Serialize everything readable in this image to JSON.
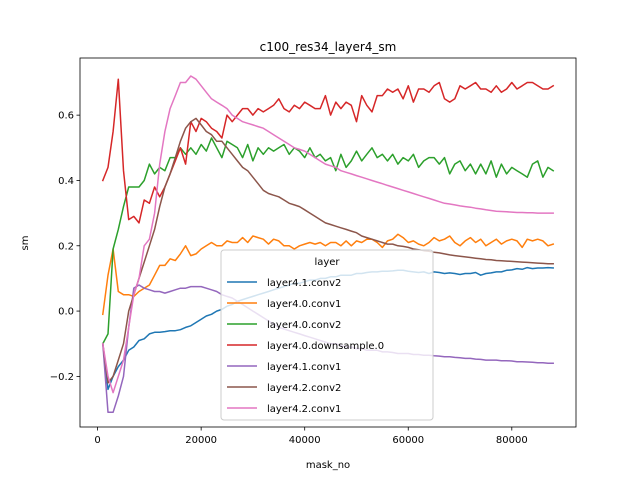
{
  "chart_data": {
    "type": "line",
    "title": "c100_res34_layer4_sm",
    "xlabel": "mask_no",
    "ylabel": "sm",
    "xlim": [
      -3400,
      92400
    ],
    "ylim": [
      -0.355,
      0.775
    ],
    "xticks": [
      0,
      20000,
      40000,
      60000,
      80000
    ],
    "yticks": [
      -0.2,
      0.0,
      0.2,
      0.4,
      0.6
    ],
    "grid": false,
    "legend": {
      "title": "layer",
      "placement": "lower-center"
    },
    "x": [
      1000,
      2000,
      3000,
      4000,
      5000,
      6000,
      7000,
      8000,
      9000,
      10000,
      11000,
      12000,
      13000,
      14000,
      15000,
      16000,
      17000,
      18000,
      19000,
      20000,
      21000,
      22000,
      23000,
      24000,
      25000,
      26000,
      27000,
      28000,
      29000,
      30000,
      31000,
      32000,
      33000,
      34000,
      35000,
      36000,
      37000,
      38000,
      39000,
      40000,
      41000,
      42000,
      43000,
      44000,
      45000,
      46000,
      47000,
      48000,
      49000,
      50000,
      51000,
      52000,
      53000,
      54000,
      55000,
      56000,
      57000,
      58000,
      59000,
      60000,
      61000,
      62000,
      63000,
      64000,
      65000,
      66000,
      67000,
      68000,
      69000,
      70000,
      71000,
      72000,
      73000,
      74000,
      75000,
      76000,
      77000,
      78000,
      79000,
      80000,
      81000,
      82000,
      83000,
      84000,
      85000,
      86000,
      87000,
      88000
    ],
    "series": [
      {
        "name": "layer4.1.conv2",
        "color": "#1f77b4",
        "values": [
          -0.1,
          -0.24,
          -0.2,
          -0.17,
          -0.15,
          -0.12,
          -0.11,
          -0.09,
          -0.085,
          -0.07,
          -0.065,
          -0.065,
          -0.063,
          -0.06,
          -0.06,
          -0.057,
          -0.05,
          -0.045,
          -0.035,
          -0.025,
          -0.015,
          -0.01,
          0.0,
          0.005,
          0.015,
          0.02,
          0.03,
          0.035,
          0.04,
          0.045,
          0.05,
          0.055,
          0.06,
          0.065,
          0.07,
          0.075,
          0.08,
          0.085,
          0.085,
          0.09,
          0.095,
          0.095,
          0.1,
          0.1,
          0.105,
          0.105,
          0.11,
          0.11,
          0.11,
          0.115,
          0.115,
          0.118,
          0.12,
          0.12,
          0.122,
          0.122,
          0.123,
          0.125,
          0.125,
          0.122,
          0.12,
          0.118,
          0.12,
          0.115,
          0.12,
          0.118,
          0.115,
          0.117,
          0.115,
          0.112,
          0.115,
          0.115,
          0.118,
          0.11,
          0.115,
          0.117,
          0.12,
          0.12,
          0.125,
          0.126,
          0.13,
          0.128,
          0.133,
          0.13,
          0.132,
          0.132,
          0.133,
          0.132
        ]
      },
      {
        "name": "layer4.0.conv1",
        "color": "#ff7f0e",
        "values": [
          -0.01,
          0.11,
          0.19,
          0.06,
          0.05,
          0.05,
          0.045,
          0.06,
          0.07,
          0.08,
          0.11,
          0.14,
          0.14,
          0.16,
          0.155,
          0.175,
          0.2,
          0.17,
          0.175,
          0.19,
          0.2,
          0.21,
          0.2,
          0.2,
          0.215,
          0.21,
          0.21,
          0.225,
          0.21,
          0.23,
          0.225,
          0.22,
          0.205,
          0.22,
          0.215,
          0.2,
          0.2,
          0.19,
          0.2,
          0.205,
          0.21,
          0.205,
          0.21,
          0.2,
          0.21,
          0.21,
          0.2,
          0.215,
          0.2,
          0.215,
          0.21,
          0.22,
          0.22,
          0.21,
          0.195,
          0.215,
          0.22,
          0.235,
          0.225,
          0.21,
          0.215,
          0.205,
          0.2,
          0.21,
          0.225,
          0.215,
          0.22,
          0.23,
          0.21,
          0.2,
          0.215,
          0.225,
          0.21,
          0.22,
          0.2,
          0.21,
          0.22,
          0.205,
          0.215,
          0.22,
          0.215,
          0.195,
          0.22,
          0.215,
          0.22,
          0.215,
          0.2,
          0.205
        ]
      },
      {
        "name": "layer4.0.conv2",
        "color": "#2ca02c",
        "values": [
          -0.1,
          -0.07,
          0.19,
          0.25,
          0.32,
          0.38,
          0.38,
          0.38,
          0.4,
          0.45,
          0.42,
          0.44,
          0.43,
          0.47,
          0.47,
          0.5,
          0.48,
          0.5,
          0.48,
          0.51,
          0.49,
          0.53,
          0.5,
          0.47,
          0.52,
          0.51,
          0.5,
          0.47,
          0.51,
          0.46,
          0.5,
          0.48,
          0.5,
          0.49,
          0.5,
          0.51,
          0.48,
          0.5,
          0.49,
          0.47,
          0.5,
          0.47,
          0.48,
          0.46,
          0.47,
          0.43,
          0.48,
          0.44,
          0.46,
          0.49,
          0.46,
          0.48,
          0.5,
          0.47,
          0.48,
          0.46,
          0.48,
          0.45,
          0.47,
          0.46,
          0.48,
          0.44,
          0.46,
          0.47,
          0.47,
          0.45,
          0.47,
          0.42,
          0.45,
          0.46,
          0.43,
          0.45,
          0.42,
          0.45,
          0.42,
          0.46,
          0.41,
          0.45,
          0.42,
          0.44,
          0.43,
          0.42,
          0.41,
          0.45,
          0.46,
          0.41,
          0.44,
          0.43
        ]
      },
      {
        "name": "layer4.0.downsample.0",
        "color": "#d62728",
        "values": [
          0.4,
          0.44,
          0.55,
          0.71,
          0.43,
          0.28,
          0.29,
          0.27,
          0.34,
          0.33,
          0.38,
          0.35,
          0.38,
          0.42,
          0.46,
          0.5,
          0.45,
          0.58,
          0.55,
          0.59,
          0.58,
          0.56,
          0.55,
          0.53,
          0.6,
          0.58,
          0.6,
          0.62,
          0.62,
          0.6,
          0.62,
          0.61,
          0.62,
          0.63,
          0.65,
          0.62,
          0.61,
          0.63,
          0.62,
          0.64,
          0.63,
          0.62,
          0.62,
          0.66,
          0.6,
          0.64,
          0.62,
          0.64,
          0.63,
          0.58,
          0.66,
          0.63,
          0.61,
          0.66,
          0.66,
          0.68,
          0.67,
          0.68,
          0.65,
          0.69,
          0.64,
          0.68,
          0.68,
          0.67,
          0.69,
          0.7,
          0.65,
          0.64,
          0.65,
          0.69,
          0.68,
          0.69,
          0.7,
          0.68,
          0.68,
          0.67,
          0.69,
          0.67,
          0.68,
          0.7,
          0.68,
          0.69,
          0.7,
          0.7,
          0.69,
          0.68,
          0.68,
          0.69
        ]
      },
      {
        "name": "layer4.1.conv1",
        "color": "#9467bd",
        "values": [
          -0.1,
          -0.31,
          -0.31,
          -0.26,
          -0.2,
          -0.05,
          0.07,
          0.08,
          0.07,
          0.065,
          0.06,
          0.06,
          0.055,
          0.06,
          0.065,
          0.07,
          0.07,
          0.075,
          0.075,
          0.075,
          0.07,
          0.065,
          0.06,
          0.05,
          0.045,
          0.04,
          0.03,
          0.02,
          0.01,
          0.0,
          -0.01,
          -0.02,
          -0.03,
          -0.04,
          -0.05,
          -0.055,
          -0.06,
          -0.065,
          -0.07,
          -0.075,
          -0.08,
          -0.085,
          -0.09,
          -0.095,
          -0.1,
          -0.1,
          -0.105,
          -0.11,
          -0.11,
          -0.115,
          -0.115,
          -0.12,
          -0.12,
          -0.12,
          -0.125,
          -0.125,
          -0.127,
          -0.13,
          -0.13,
          -0.13,
          -0.133,
          -0.133,
          -0.135,
          -0.135,
          -0.137,
          -0.138,
          -0.14,
          -0.14,
          -0.142,
          -0.143,
          -0.145,
          -0.145,
          -0.147,
          -0.148,
          -0.15,
          -0.15,
          -0.15,
          -0.152,
          -0.152,
          -0.153,
          -0.155,
          -0.155,
          -0.156,
          -0.157,
          -0.158,
          -0.158,
          -0.16,
          -0.16
        ]
      },
      {
        "name": "layer4.2.conv2",
        "color": "#8c564b",
        "values": [
          -0.1,
          -0.22,
          -0.2,
          -0.15,
          -0.1,
          0.0,
          0.05,
          0.1,
          0.15,
          0.2,
          0.25,
          0.32,
          0.38,
          0.42,
          0.47,
          0.52,
          0.56,
          0.58,
          0.59,
          0.57,
          0.55,
          0.54,
          0.52,
          0.52,
          0.5,
          0.48,
          0.46,
          0.44,
          0.43,
          0.41,
          0.39,
          0.37,
          0.36,
          0.355,
          0.35,
          0.34,
          0.33,
          0.325,
          0.32,
          0.31,
          0.3,
          0.29,
          0.28,
          0.27,
          0.265,
          0.26,
          0.255,
          0.25,
          0.245,
          0.24,
          0.23,
          0.225,
          0.22,
          0.215,
          0.21,
          0.205,
          0.205,
          0.2,
          0.198,
          0.195,
          0.19,
          0.188,
          0.185,
          0.183,
          0.18,
          0.178,
          0.175,
          0.172,
          0.17,
          0.168,
          0.166,
          0.164,
          0.162,
          0.16,
          0.158,
          0.157,
          0.155,
          0.154,
          0.153,
          0.152,
          0.151,
          0.15,
          0.149,
          0.148,
          0.147,
          0.146,
          0.145,
          0.145
        ]
      },
      {
        "name": "layer4.2.conv1",
        "color": "#e377c2",
        "values": [
          -0.1,
          -0.2,
          -0.25,
          -0.2,
          -0.15,
          -0.05,
          0.05,
          0.1,
          0.2,
          0.22,
          0.3,
          0.45,
          0.55,
          0.62,
          0.66,
          0.7,
          0.7,
          0.72,
          0.71,
          0.69,
          0.67,
          0.65,
          0.64,
          0.63,
          0.62,
          0.6,
          0.59,
          0.58,
          0.575,
          0.57,
          0.565,
          0.56,
          0.55,
          0.54,
          0.53,
          0.52,
          0.51,
          0.5,
          0.495,
          0.49,
          0.48,
          0.47,
          0.46,
          0.45,
          0.445,
          0.44,
          0.43,
          0.425,
          0.42,
          0.415,
          0.41,
          0.405,
          0.4,
          0.395,
          0.39,
          0.385,
          0.38,
          0.375,
          0.37,
          0.365,
          0.36,
          0.355,
          0.35,
          0.345,
          0.34,
          0.335,
          0.33,
          0.328,
          0.325,
          0.322,
          0.32,
          0.318,
          0.315,
          0.313,
          0.31,
          0.308,
          0.306,
          0.305,
          0.304,
          0.303,
          0.302,
          0.302,
          0.301,
          0.301,
          0.3,
          0.3,
          0.3,
          0.3
        ]
      }
    ]
  }
}
